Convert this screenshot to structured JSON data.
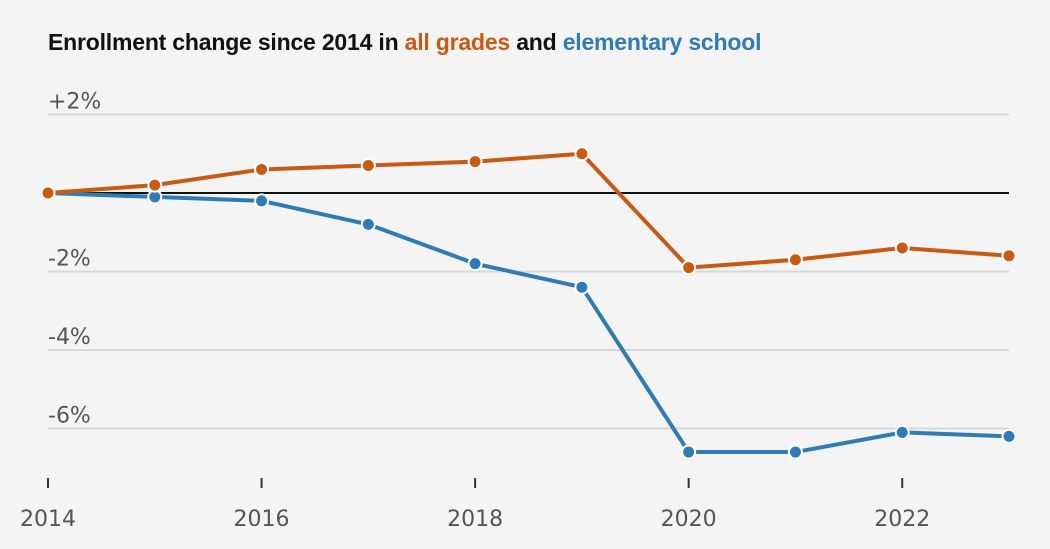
{
  "title": {
    "prefix": "Enrollment change since 2014 in ",
    "series1": "all grades",
    "connector": " and ",
    "series2": "elementary school"
  },
  "colors": {
    "all_grades": "#c85a12",
    "elementary": "#2e7bb6",
    "zero_line": "#111111",
    "grid": "#d8d8d8",
    "background": "#f4f4f4"
  },
  "chart_data": {
    "type": "line",
    "x": [
      2014,
      2015,
      2016,
      2017,
      2018,
      2019,
      2020,
      2021,
      2022,
      2023
    ],
    "series": [
      {
        "name": "all grades",
        "values": [
          0,
          0.2,
          0.6,
          0.7,
          0.8,
          1.0,
          -1.9,
          -1.7,
          -1.4,
          -1.6
        ]
      },
      {
        "name": "elementary school",
        "values": [
          0,
          -0.1,
          -0.2,
          -0.8,
          -1.8,
          -2.4,
          -6.6,
          -6.6,
          -6.1,
          -6.2
        ]
      }
    ],
    "xlim": [
      2014,
      2023
    ],
    "ylim": [
      -7,
      2
    ],
    "y_ticks": [
      2,
      -2,
      -4,
      -6
    ],
    "y_tick_labels": [
      "+2%",
      "-2%",
      "-4%",
      "-6%"
    ],
    "x_ticks": [
      2014,
      2016,
      2018,
      2020,
      2022
    ],
    "x_tick_labels": [
      "2014",
      "2016",
      "2018",
      "2020",
      "2022"
    ],
    "grid": true,
    "legend": "in title"
  }
}
